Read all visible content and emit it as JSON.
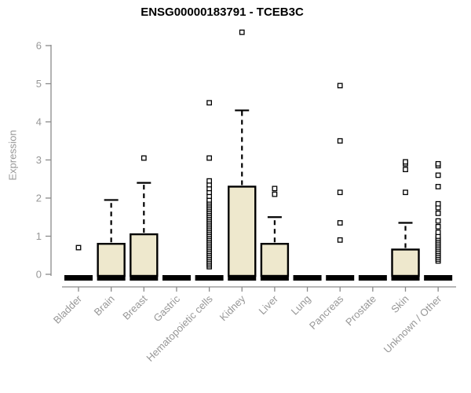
{
  "chart_data": {
    "type": "boxplot",
    "title": "ENSG00000183791 - TCEB3C",
    "ylabel": "Expression",
    "xlabel": "",
    "ylim": [
      0,
      6.5
    ],
    "yticks": [
      0,
      1,
      2,
      3,
      4,
      5,
      6
    ],
    "grid": false,
    "legend": "none",
    "categories": [
      "Bladder",
      "Brain",
      "Breast",
      "Gastric",
      "Hematopoietic cells",
      "Kidney",
      "Liver",
      "Lung",
      "Pancreas",
      "Prostate",
      "Skin",
      "Unknown / Other"
    ],
    "boxes": [
      {
        "category": "Bladder",
        "q1": 0,
        "median": 0,
        "q3": 0,
        "whisker_high": 0,
        "outliers": [
          0.7
        ]
      },
      {
        "category": "Brain",
        "q1": 0,
        "median": 0,
        "q3": 0.8,
        "whisker_high": 1.95,
        "outliers": []
      },
      {
        "category": "Breast",
        "q1": 0,
        "median": 0,
        "q3": 1.05,
        "whisker_high": 2.4,
        "outliers": [
          3.05
        ]
      },
      {
        "category": "Gastric",
        "q1": 0,
        "median": 0,
        "q3": 0,
        "whisker_high": 0,
        "outliers": []
      },
      {
        "category": "Hematopoietic cells",
        "q1": 0,
        "median": 0,
        "q3": 0,
        "whisker_high": 0,
        "outliers": [
          0.2,
          0.25,
          0.3,
          0.35,
          0.4,
          0.45,
          0.5,
          0.55,
          0.6,
          0.65,
          0.7,
          0.75,
          0.8,
          0.85,
          0.9,
          0.95,
          1.0,
          1.05,
          1.1,
          1.15,
          1.2,
          1.25,
          1.3,
          1.35,
          1.4,
          1.45,
          1.5,
          1.55,
          1.6,
          1.65,
          1.7,
          1.75,
          1.8,
          1.85,
          1.9,
          1.95,
          2.05,
          2.15,
          2.25,
          2.35,
          2.45,
          3.05,
          4.5
        ]
      },
      {
        "category": "Kidney",
        "q1": 0,
        "median": 0,
        "q3": 2.3,
        "whisker_high": 4.3,
        "outliers": [
          6.35
        ]
      },
      {
        "category": "Liver",
        "q1": 0,
        "median": 0,
        "q3": 0.8,
        "whisker_high": 1.5,
        "outliers": [
          2.1,
          2.25
        ]
      },
      {
        "category": "Lung",
        "q1": 0,
        "median": 0,
        "q3": 0,
        "whisker_high": 0,
        "outliers": []
      },
      {
        "category": "Pancreas",
        "q1": 0,
        "median": 0,
        "q3": 0,
        "whisker_high": 0,
        "outliers": [
          0.9,
          1.35,
          2.15,
          3.5,
          4.95
        ]
      },
      {
        "category": "Prostate",
        "q1": 0,
        "median": 0,
        "q3": 0,
        "whisker_high": 0,
        "outliers": []
      },
      {
        "category": "Skin",
        "q1": 0,
        "median": 0,
        "q3": 0.65,
        "whisker_high": 1.35,
        "outliers": [
          2.15,
          2.75,
          2.9,
          2.95
        ]
      },
      {
        "category": "Unknown / Other",
        "q1": 0,
        "median": 0,
        "q3": 0,
        "whisker_high": 0,
        "outliers": [
          0.35,
          0.4,
          0.45,
          0.5,
          0.55,
          0.6,
          0.65,
          0.7,
          0.75,
          0.8,
          0.85,
          0.9,
          0.95,
          1.0,
          1.1,
          1.25,
          1.4,
          1.6,
          1.75,
          1.85,
          2.3,
          2.6,
          2.85,
          2.9
        ]
      }
    ],
    "style": {
      "box_fill": "#EEE8CD",
      "box_stroke": "#000000",
      "median_color": "#000000",
      "whisker_color": "#000000",
      "outlier_stroke": "#000000",
      "outlier_fill": "#ffffff",
      "axis_color": "#8A8A8A",
      "label_color": "#979797",
      "title_color": "#000000",
      "background": "#ffffff"
    }
  }
}
